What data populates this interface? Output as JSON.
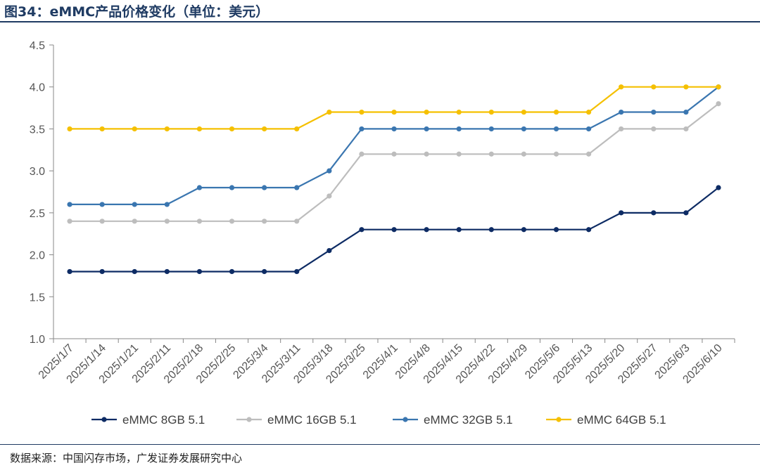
{
  "header": {
    "title": "图34：eMMC产品价格变化（单位：美元）"
  },
  "footer": {
    "source": "数据来源：中国闪存市场，广发证券发展研究中心"
  },
  "colors": {
    "s8": "#0d2b64",
    "s16": "#bdbdbd",
    "s32": "#3a76b0",
    "s64": "#f5c000",
    "axis": "#888888"
  },
  "chart_data": {
    "type": "line",
    "title": "图34：eMMC产品价格变化（单位：美元）",
    "xlabel": "",
    "ylabel": "",
    "ylim": [
      1.0,
      4.5
    ],
    "yticks": [
      "1.0",
      "1.5",
      "2.0",
      "2.5",
      "3.0",
      "3.5",
      "4.0",
      "4.5"
    ],
    "grid": false,
    "legend": "bottom",
    "x": [
      "2025/1/7",
      "2025/1/14",
      "2025/1/21",
      "2025/2/11",
      "2025/2/18",
      "2025/2/25",
      "2025/3/4",
      "2025/3/11",
      "2025/3/18",
      "2025/3/25",
      "2025/4/1",
      "2025/4/8",
      "2025/4/15",
      "2025/4/22",
      "2025/4/29",
      "2025/5/6",
      "2025/5/13",
      "2025/5/20",
      "2025/5/27",
      "2025/6/3",
      "2025/6/10"
    ],
    "series": [
      {
        "name": "eMMC 8GB 5.1",
        "color": "#0d2b64",
        "values": [
          1.8,
          1.8,
          1.8,
          1.8,
          1.8,
          1.8,
          1.8,
          1.8,
          2.05,
          2.3,
          2.3,
          2.3,
          2.3,
          2.3,
          2.3,
          2.3,
          2.3,
          2.5,
          2.5,
          2.5,
          2.8
        ]
      },
      {
        "name": "eMMC 16GB 5.1",
        "color": "#bdbdbd",
        "values": [
          2.4,
          2.4,
          2.4,
          2.4,
          2.4,
          2.4,
          2.4,
          2.4,
          2.7,
          3.2,
          3.2,
          3.2,
          3.2,
          3.2,
          3.2,
          3.2,
          3.2,
          3.5,
          3.5,
          3.5,
          3.8
        ]
      },
      {
        "name": "eMMC 32GB 5.1",
        "color": "#3a76b0",
        "values": [
          2.6,
          2.6,
          2.6,
          2.6,
          2.8,
          2.8,
          2.8,
          2.8,
          3.0,
          3.5,
          3.5,
          3.5,
          3.5,
          3.5,
          3.5,
          3.5,
          3.5,
          3.7,
          3.7,
          3.7,
          4.0
        ]
      },
      {
        "name": "eMMC 64GB 5.1",
        "color": "#f5c000",
        "values": [
          3.5,
          3.5,
          3.5,
          3.5,
          3.5,
          3.5,
          3.5,
          3.5,
          3.7,
          3.7,
          3.7,
          3.7,
          3.7,
          3.7,
          3.7,
          3.7,
          3.7,
          4.0,
          4.0,
          4.0,
          4.0
        ]
      }
    ]
  }
}
